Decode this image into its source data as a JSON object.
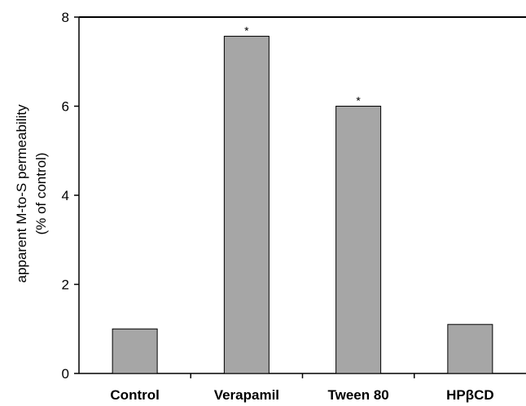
{
  "chart_data": {
    "type": "bar",
    "categories": [
      "Control",
      "Verapamil",
      "Tween 80",
      "HPβCD"
    ],
    "values": [
      1.0,
      7.57,
      6.0,
      1.1
    ],
    "annotations": [
      "",
      "*",
      "*",
      ""
    ],
    "ylabel_line1": "apparent M-to-S permeability",
    "ylabel_line2": "(% of control)",
    "xlabel": "",
    "title": "",
    "ylim": [
      0,
      8
    ],
    "yticks": [
      "0",
      "2",
      "4",
      "6",
      "8"
    ],
    "grid": false,
    "legend": "none",
    "colors": {
      "bar_fill": "#a6a6a6",
      "bar_stroke": "#000000",
      "axis": "#000000"
    }
  }
}
